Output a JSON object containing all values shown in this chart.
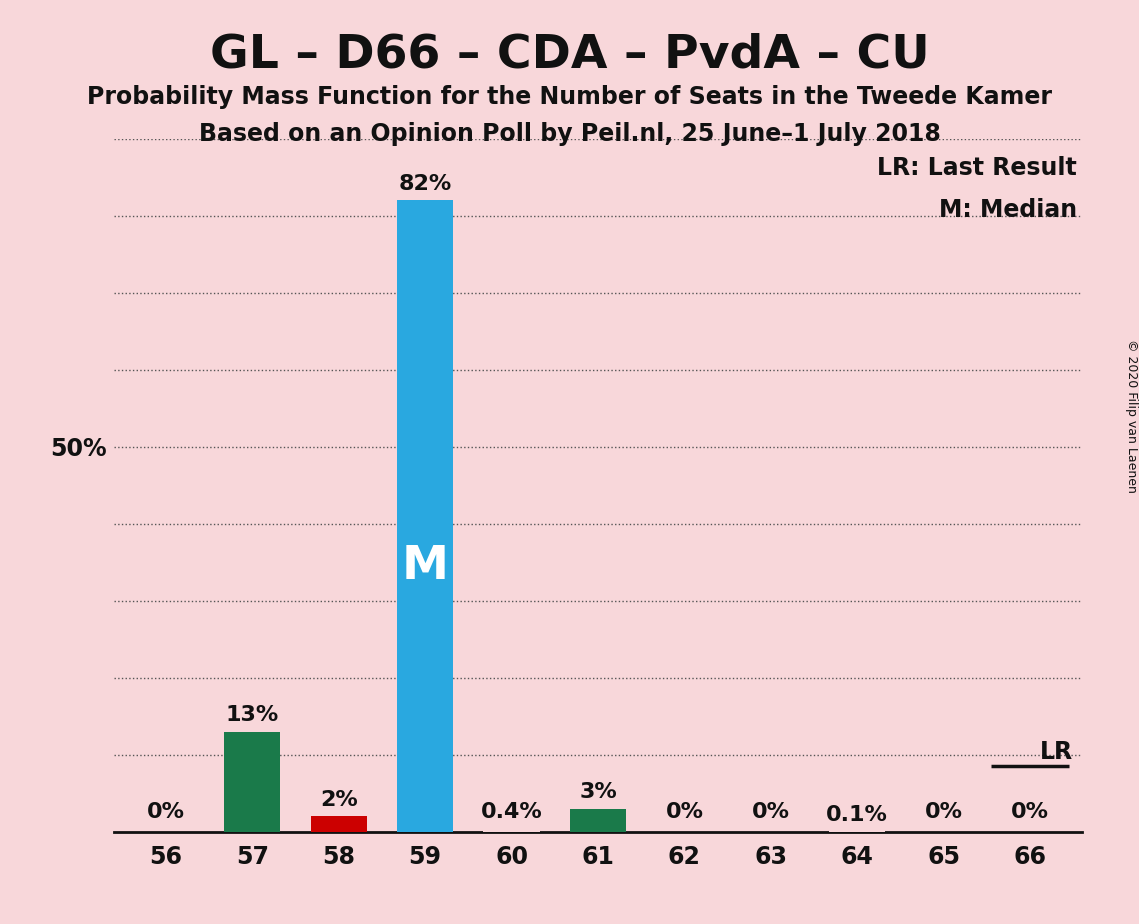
{
  "title": "GL – D66 – CDA – PvdA – CU",
  "subtitle1": "Probability Mass Function for the Number of Seats in the Tweede Kamer",
  "subtitle2": "Based on an Opinion Poll by Peil.nl, 25 June–1 July 2018",
  "copyright": "© 2020 Filip van Laenen",
  "categories": [
    56,
    57,
    58,
    59,
    60,
    61,
    62,
    63,
    64,
    65,
    66
  ],
  "values": [
    0.0,
    13.0,
    2.0,
    82.0,
    0.4,
    3.0,
    0.0,
    0.0,
    0.1,
    0.0,
    0.0
  ],
  "labels": [
    "0%",
    "13%",
    "2%",
    "82%",
    "0.4%",
    "3%",
    "0%",
    "0%",
    "0.1%",
    "0%",
    "0%"
  ],
  "bar_colors": [
    "#f8d7da",
    "#1a7a4a",
    "#cc0000",
    "#29a8e0",
    "#f8d7da",
    "#1a7a4a",
    "#f8d7da",
    "#f8d7da",
    "#f8d7da",
    "#f8d7da",
    "#f8d7da"
  ],
  "background_color": "#f8d7da",
  "median_bar": 59,
  "median_label": "M",
  "last_result_seat": 66,
  "lr_label": "LR",
  "ylim": [
    0,
    90
  ],
  "grid_yticks": [
    10,
    20,
    30,
    40,
    50,
    60,
    70,
    80,
    90
  ],
  "y50_label": "50%",
  "legend_lr": "LR: Last Result",
  "legend_m": "M: Median",
  "title_fontsize": 34,
  "subtitle_fontsize": 17,
  "axis_label_fontsize": 17,
  "bar_label_fontsize": 16,
  "annotation_fontsize": 17,
  "legend_fontsize": 17,
  "copyright_fontsize": 9
}
